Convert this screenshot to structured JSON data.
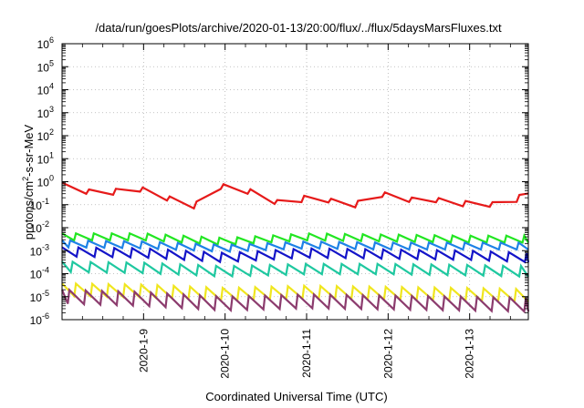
{
  "chart_data": {
    "type": "line",
    "title": "/data/run/goesPlots/archive/2020-01-13/20:00/flux/../flux/5daysMarsFluxes.txt",
    "xlabel": "Coordinated Universal Time (UTC)",
    "ylabel_parts": [
      "protons/cm",
      "2",
      "-s-sr-MeV"
    ],
    "yscale": "log",
    "ylim_exp": [
      -6,
      6
    ],
    "y_ticks": [
      {
        "mant": "10",
        "exp": "-6"
      },
      {
        "mant": "10",
        "exp": "-5"
      },
      {
        "mant": "10",
        "exp": "-4"
      },
      {
        "mant": "10",
        "exp": "-3"
      },
      {
        "mant": "10",
        "exp": "-2"
      },
      {
        "mant": "10",
        "exp": "-1"
      },
      {
        "mant": "10",
        "exp": "0"
      },
      {
        "mant": "10",
        "exp": "1"
      },
      {
        "mant": "10",
        "exp": "2"
      },
      {
        "mant": "10",
        "exp": "3"
      },
      {
        "mant": "10",
        "exp": "4"
      },
      {
        "mant": "10",
        "exp": "5"
      },
      {
        "mant": "10",
        "exp": "6"
      }
    ],
    "xlim_days": [
      0,
      5.72
    ],
    "x_ticks": [
      {
        "label": "2020-1-9",
        "day": 1
      },
      {
        "label": "2020-1-10",
        "day": 2
      },
      {
        "label": "2020-1-11",
        "day": 3
      },
      {
        "label": "2020-1-12",
        "day": 4
      },
      {
        "label": "2020-1-13",
        "day": 5
      }
    ],
    "grid": true,
    "series": [
      {
        "color": "#e61a1a",
        "lw": 2.2,
        "period": 0.33,
        "phase": 0.0,
        "points": [
          [
            0,
            -0.15
          ],
          [
            0.5,
            -0.6
          ],
          [
            0.85,
            -0.2
          ],
          [
            1.2,
            -0.6
          ],
          [
            1.6,
            -1.1
          ],
          [
            1.95,
            -0.2
          ],
          [
            2.4,
            -0.5
          ],
          [
            2.75,
            -1.1
          ],
          [
            3.1,
            -0.5
          ],
          [
            3.5,
            -1.2
          ],
          [
            3.85,
            -0.5
          ],
          [
            4.3,
            -0.8
          ],
          [
            4.5,
            -0.7
          ],
          [
            4.8,
            -1.0
          ],
          [
            5.1,
            -0.9
          ],
          [
            5.45,
            -1.1
          ],
          [
            5.72,
            -0.4
          ]
        ],
        "amp": 0.22
      },
      {
        "color": "#22e622",
        "lw": 2.2,
        "period": 0.22,
        "phase": 0.05,
        "points": [
          [
            0,
            -2.4
          ],
          [
            1,
            -2.4
          ],
          [
            2,
            -2.6
          ],
          [
            3,
            -2.4
          ],
          [
            4,
            -2.45
          ],
          [
            5,
            -2.5
          ],
          [
            5.72,
            -2.5
          ]
        ],
        "amp": 0.3
      },
      {
        "color": "#1e82e6",
        "lw": 2.2,
        "period": 0.22,
        "phase": 0.12,
        "points": [
          [
            0,
            -2.7
          ],
          [
            1,
            -2.75
          ],
          [
            2,
            -2.9
          ],
          [
            3,
            -2.75
          ],
          [
            4,
            -2.8
          ],
          [
            5,
            -2.8
          ],
          [
            5.72,
            -2.8
          ]
        ],
        "amp": 0.3
      },
      {
        "color": "#1414c8",
        "lw": 2.2,
        "period": 0.22,
        "phase": 0.02,
        "points": [
          [
            0,
            -3.05
          ],
          [
            1,
            -3.1
          ],
          [
            2,
            -3.3
          ],
          [
            3,
            -3.1
          ],
          [
            4,
            -3.15
          ],
          [
            5,
            -3.2
          ],
          [
            5.72,
            -3.3
          ]
        ],
        "amp": 0.4
      },
      {
        "color": "#1fc8a0",
        "lw": 2.2,
        "period": 0.22,
        "phase": 0.09,
        "points": [
          [
            0,
            -3.7
          ],
          [
            1,
            -3.75
          ],
          [
            2,
            -3.9
          ],
          [
            3,
            -3.8
          ],
          [
            4,
            -3.8
          ],
          [
            5,
            -3.85
          ],
          [
            5.72,
            -3.9
          ]
        ],
        "amp": 0.45
      },
      {
        "color": "#f0e61e",
        "lw": 2.2,
        "period": 0.2,
        "phase": 0.03,
        "points": [
          [
            0,
            -4.7
          ],
          [
            1,
            -4.75
          ],
          [
            2,
            -4.9
          ],
          [
            3,
            -4.8
          ],
          [
            4,
            -4.85
          ],
          [
            5,
            -4.9
          ],
          [
            5.72,
            -4.95
          ]
        ],
        "amp": 0.55
      },
      {
        "color": "#8c3c6e",
        "lw": 2.2,
        "period": 0.2,
        "phase": 0.11,
        "points": [
          [
            0,
            -5.0
          ],
          [
            1,
            -5.1
          ],
          [
            2,
            -5.3
          ],
          [
            3,
            -5.2
          ],
          [
            4,
            -5.25
          ],
          [
            5,
            -5.3
          ],
          [
            5.72,
            -5.35
          ]
        ],
        "amp": 0.6
      }
    ]
  }
}
